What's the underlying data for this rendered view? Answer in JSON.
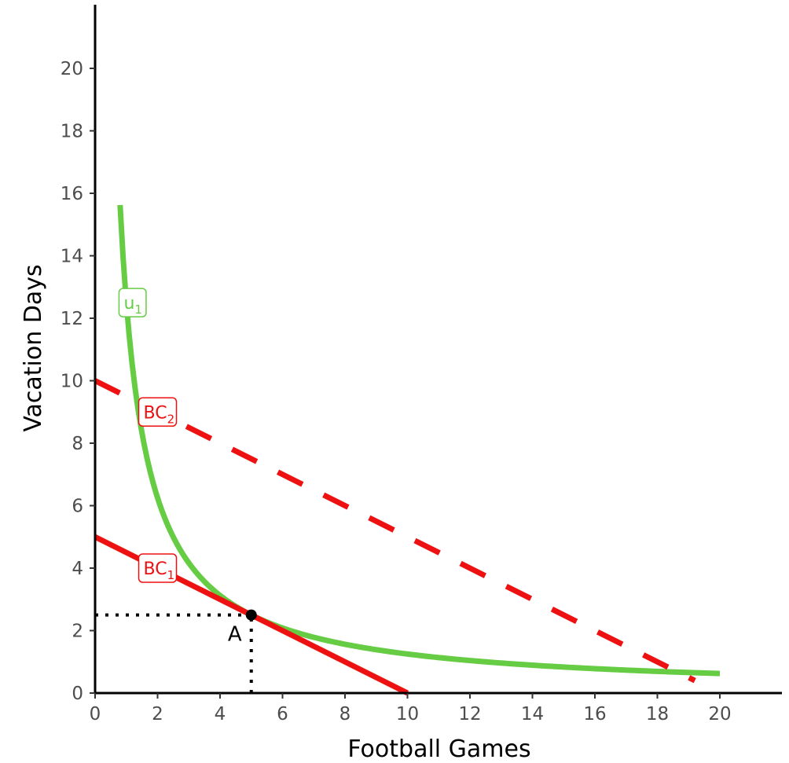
{
  "chart_data": {
    "type": "line",
    "title": "",
    "xlabel": "Football Games",
    "ylabel": "Vacation Days",
    "xlim": [
      0,
      22
    ],
    "ylim": [
      0,
      22
    ],
    "x_ticks": [
      0,
      2,
      4,
      6,
      8,
      10,
      12,
      14,
      16,
      18,
      20
    ],
    "y_ticks": [
      0,
      2,
      4,
      6,
      8,
      10,
      12,
      14,
      16,
      18,
      20
    ],
    "grid": false,
    "colors": {
      "indifference": "#66cc44",
      "budget": "#ee1111",
      "point": "#000000"
    },
    "series": [
      {
        "name": "u",
        "subscript": "1",
        "kind": "indifference curve",
        "function": "y = 12.5 / x",
        "x_range": [
          0.8,
          20
        ],
        "style": "solid",
        "color": "#66cc44"
      },
      {
        "name": "BC",
        "subscript": "1",
        "kind": "budget line",
        "points": [
          [
            0,
            5
          ],
          [
            10,
            0
          ]
        ],
        "style": "solid",
        "color": "#ee1111"
      },
      {
        "name": "BC",
        "subscript": "2",
        "kind": "budget line",
        "points": [
          [
            0,
            10
          ],
          [
            19.2,
            0.4
          ]
        ],
        "style": "dashed",
        "color": "#ee1111"
      }
    ],
    "labels": [
      {
        "series": 0,
        "at": [
          1.2,
          12.5
        ]
      },
      {
        "series": 1,
        "at": [
          2.0,
          4.0
        ]
      },
      {
        "series": 2,
        "at": [
          2.0,
          9.0
        ]
      }
    ],
    "points": [
      {
        "label": "A",
        "x": 5,
        "y": 2.5
      }
    ],
    "guides": [
      {
        "from": [
          0,
          2.5
        ],
        "to": [
          5,
          2.5
        ],
        "style": "dotted"
      },
      {
        "from": [
          5,
          0
        ],
        "to": [
          5,
          2.5
        ],
        "style": "dotted"
      }
    ]
  }
}
